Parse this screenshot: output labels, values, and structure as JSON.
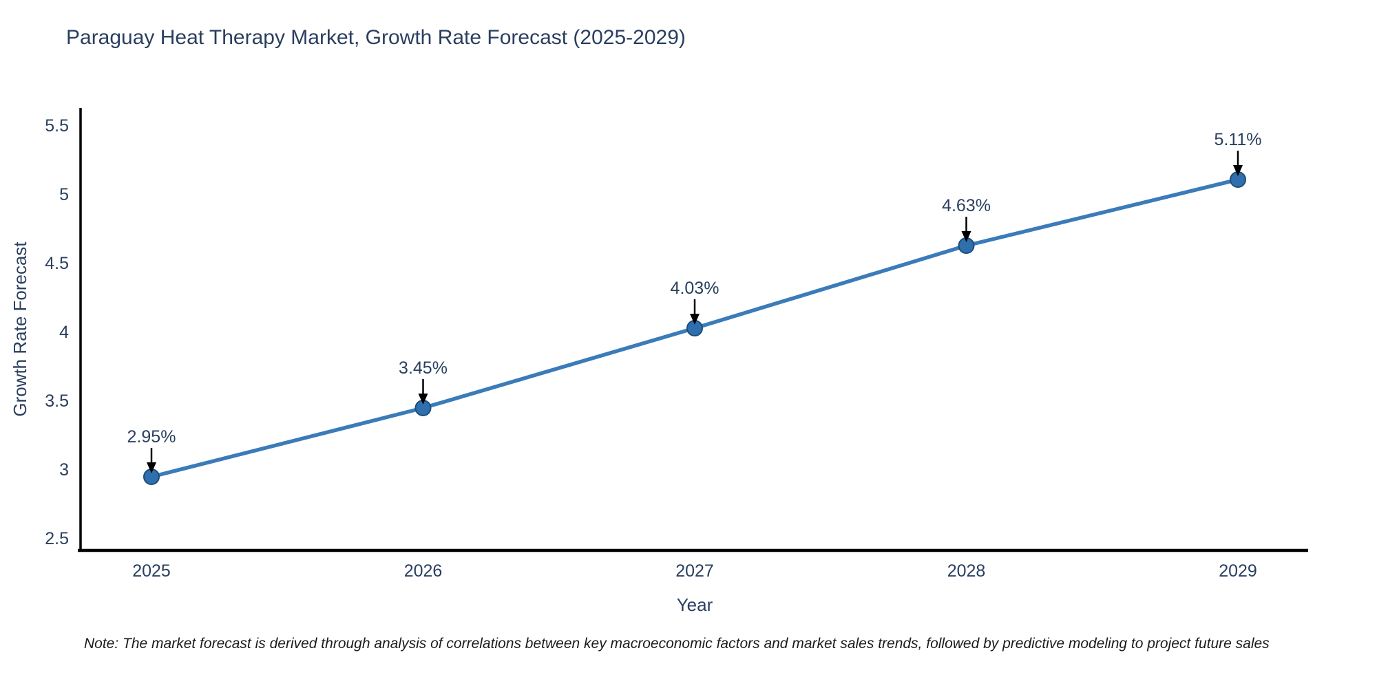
{
  "title": "Paraguay Heat Therapy Market, Growth Rate Forecast (2025-2029)",
  "note": "Note: The market forecast is derived through analysis of correlations between key macroeconomic factors and market sales trends, followed by predictive modeling to project future sales",
  "chart_data": {
    "type": "line",
    "x": [
      "2025",
      "2026",
      "2027",
      "2028",
      "2029"
    ],
    "y": [
      2.95,
      3.45,
      4.03,
      4.63,
      5.11
    ],
    "point_labels": [
      "2.95%",
      "3.45%",
      "4.03%",
      "4.63%",
      "5.11%"
    ],
    "title": "Paraguay Heat Therapy Market, Growth Rate Forecast (2025-2029)",
    "xlabel": "Year",
    "ylabel": "Growth Rate Forecast",
    "yticks": [
      2.5,
      3,
      3.5,
      4,
      4.5,
      5,
      5.5
    ],
    "ylim": [
      2.5,
      5.5
    ],
    "grid": false,
    "legend": "none",
    "annotations": "value labels with downward arrows above each point",
    "colors": {
      "line": "#3b7bb8",
      "marker_fill": "#2f6fae",
      "marker_edge": "#1d4d77",
      "arrow": "#000000",
      "axis": "#000000",
      "text": "#2a3f5f",
      "note": "#1c1c1c"
    }
  }
}
